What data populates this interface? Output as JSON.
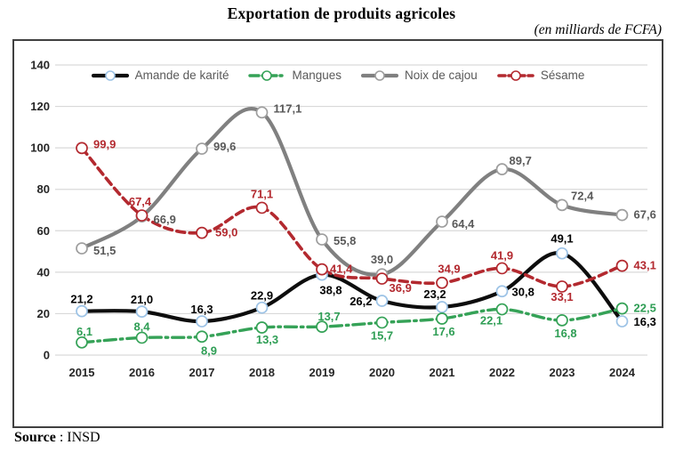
{
  "title": "Exportation de produits agricoles",
  "subtitle": "(en milliards de FCFA)",
  "source": {
    "label": "Source",
    "value": ": INSD"
  },
  "chart_data": {
    "type": "line",
    "categories": [
      "2015",
      "2016",
      "2017",
      "2018",
      "2019",
      "2020",
      "2021",
      "2022",
      "2023",
      "2024"
    ],
    "series": [
      {
        "name": "Amande de karité",
        "values": [
          21.2,
          21.0,
          16.3,
          22.9,
          38.8,
          26.2,
          23.2,
          30.8,
          49.1,
          16.3
        ],
        "line_color": "#0d0d0d",
        "label_color": "#000000",
        "marker_color": "#9dc3e6",
        "style": "solid"
      },
      {
        "name": "Mangues",
        "values": [
          6.1,
          8.4,
          8.9,
          13.3,
          13.7,
          15.7,
          17.6,
          22.1,
          16.8,
          22.5
        ],
        "line_color": "#35a257",
        "label_color": "#2f9e55",
        "marker_color": "#35a257",
        "style": "dashdot"
      },
      {
        "name": "Noix de cajou",
        "values": [
          51.5,
          66.9,
          99.6,
          117.1,
          55.8,
          39.0,
          64.4,
          89.7,
          72.4,
          67.6
        ],
        "line_color": "#808080",
        "label_color": "#595959",
        "marker_color": "#9e9e9e",
        "style": "solid"
      },
      {
        "name": "Sésame",
        "values": [
          99.9,
          67.4,
          59.0,
          71.1,
          41.4,
          36.9,
          34.9,
          41.9,
          33.1,
          43.1
        ],
        "line_color": "#b3292f",
        "label_color": "#b3292f",
        "marker_color": "#b3292f",
        "style": "dashed"
      }
    ],
    "ylim": [
      0,
      140
    ],
    "yticks": [
      0,
      20,
      40,
      60,
      80,
      100,
      120,
      140
    ],
    "decimal_separator": ",",
    "grid": true,
    "legend_position": "top-center",
    "xlabel": "",
    "ylabel": ""
  }
}
